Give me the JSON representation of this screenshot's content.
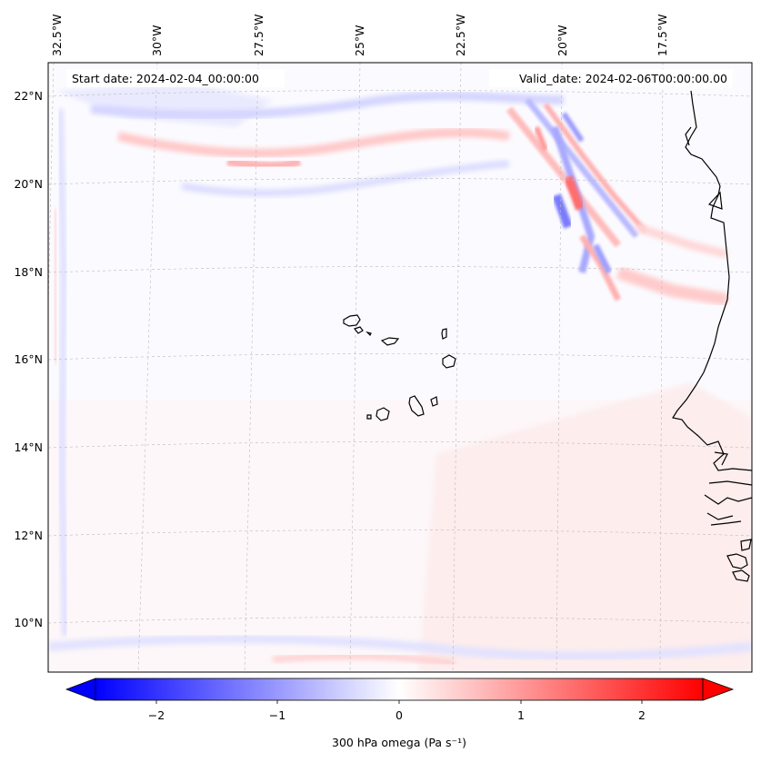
{
  "map": {
    "start_date_text": "Start date: 2024-02-04_00:00:00",
    "valid_date_text": "Valid_date: 2024-02-06T00:00:00.00",
    "lon_labels": [
      "32.5°W",
      "30°W",
      "27.5°W",
      "25°W",
      "22.5°W",
      "20°W",
      "17.5°W"
    ],
    "lat_labels": [
      "22°N",
      "20°N",
      "18°N",
      "16°N",
      "14°N",
      "12°N",
      "10°N"
    ],
    "field": "300 hPa omega",
    "region": "Cabo Verde and West African coast"
  },
  "colorbar": {
    "label": "300 hPa omega (Pa s⁻¹)",
    "ticks": [
      "−2",
      "−1",
      "0",
      "1",
      "2"
    ],
    "vmin": -2.5,
    "vmax": 2.5,
    "cmap": "bwr",
    "extend": "both",
    "low_color": "#0000ff",
    "mid_color": "#ffffff",
    "high_color": "#ff0000"
  },
  "colors": {
    "coast": "#000000",
    "grid": "#bbbbbb",
    "positive": "#ff0000",
    "negative": "#0000ff"
  }
}
